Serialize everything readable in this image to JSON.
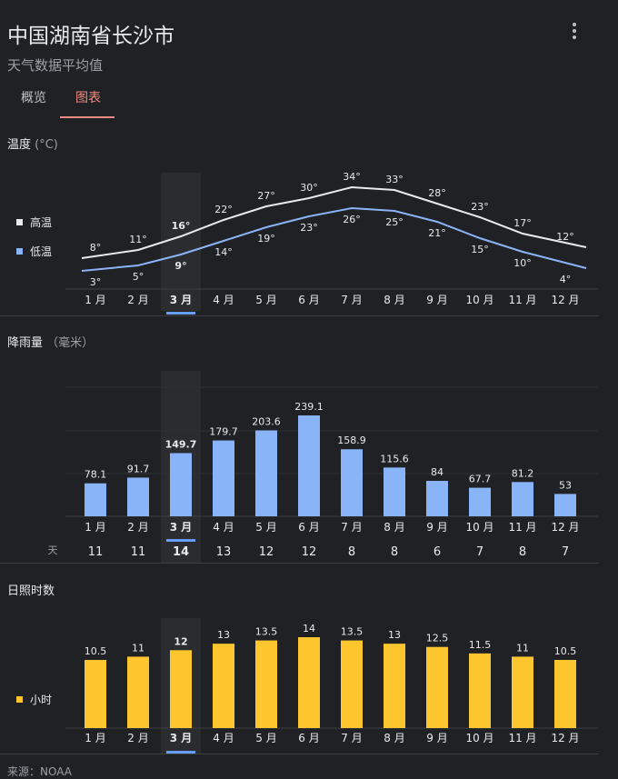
{
  "header": {
    "title": "中国湖南省长沙市",
    "subtitle": "天气数据平均值",
    "menu_icon": "more-vert-icon"
  },
  "tabs": [
    {
      "label": "概览",
      "active": false
    },
    {
      "label": "图表",
      "active": true
    }
  ],
  "accent_color": "#f28b82",
  "selected_month_index": 2,
  "months": [
    "1 月",
    "2 月",
    "3 月",
    "4 月",
    "5 月",
    "6 月",
    "7 月",
    "8 月",
    "9 月",
    "10 月",
    "11 月",
    "12 月"
  ],
  "temperature": {
    "title": "温度",
    "unit": "(°C)",
    "legend": [
      {
        "label": "高温",
        "color": "#e8eaed"
      },
      {
        "label": "低温",
        "color": "#8ab4f8"
      }
    ],
    "high_labels": [
      "8°",
      "11°",
      "16°",
      "22°",
      "27°",
      "30°",
      "34°",
      "33°",
      "28°",
      "23°",
      "17°",
      "12°"
    ],
    "low_labels": [
      "3°",
      "5°",
      "9°",
      "14°",
      "19°",
      "23°",
      "26°",
      "25°",
      "21°",
      "15°",
      "10°",
      "4°"
    ]
  },
  "precipitation": {
    "title": "降雨量",
    "unit": "（毫米）",
    "bar_color": "#8ab4f8",
    "value_labels": [
      "78.1",
      "91.7",
      "149.7",
      "179.7",
      "203.6",
      "239.1",
      "158.9",
      "115.6",
      "84",
      "67.7",
      "81.2",
      "53"
    ],
    "days_label": "天",
    "days": [
      "11",
      "11",
      "14",
      "13",
      "12",
      "12",
      "8",
      "8",
      "6",
      "7",
      "8",
      "7"
    ]
  },
  "sunshine": {
    "title": "日照时数",
    "legend": [
      {
        "label": "小时",
        "color": "#fdc62f"
      }
    ],
    "bar_color": "#fdc62f",
    "value_labels": [
      "10.5",
      "11",
      "12",
      "13",
      "13.5",
      "14",
      "13.5",
      "13",
      "12.5",
      "11.5",
      "11",
      "10.5"
    ]
  },
  "chart_data": [
    {
      "type": "line",
      "title": "温度",
      "x": [
        "1 月",
        "2 月",
        "3 月",
        "4 月",
        "5 月",
        "6 月",
        "7 月",
        "8 月",
        "9 月",
        "10 月",
        "11 月",
        "12 月"
      ],
      "series": [
        {
          "name": "高温",
          "values": [
            8,
            11,
            16,
            22,
            27,
            30,
            34,
            33,
            28,
            23,
            17,
            12
          ]
        },
        {
          "name": "低温",
          "values": [
            3,
            5,
            9,
            14,
            19,
            23,
            26,
            25,
            21,
            15,
            10,
            4
          ]
        }
      ]
    },
    {
      "type": "bar",
      "title": "降雨量",
      "categories": [
        "1 月",
        "2 月",
        "3 月",
        "4 月",
        "5 月",
        "6 月",
        "7 月",
        "8 月",
        "9 月",
        "10 月",
        "11 月",
        "12 月"
      ],
      "values": [
        78.1,
        91.7,
        149.7,
        179.7,
        203.6,
        239.1,
        158.9,
        115.6,
        84,
        67.7,
        81.2,
        53
      ],
      "ylim": [
        0,
        300
      ],
      "grid": true
    },
    {
      "type": "bar",
      "title": "日照时数",
      "categories": [
        "1 月",
        "2 月",
        "3 月",
        "4 月",
        "5 月",
        "6 月",
        "7 月",
        "8 月",
        "9 月",
        "10 月",
        "11 月",
        "12 月"
      ],
      "series": [
        {
          "name": "小时",
          "values": [
            10.5,
            11,
            12,
            13,
            13.5,
            14,
            13.5,
            13,
            12.5,
            11.5,
            11,
            10.5
          ]
        }
      ],
      "ylim": [
        0,
        14
      ]
    }
  ],
  "source": "来源：NOAA"
}
